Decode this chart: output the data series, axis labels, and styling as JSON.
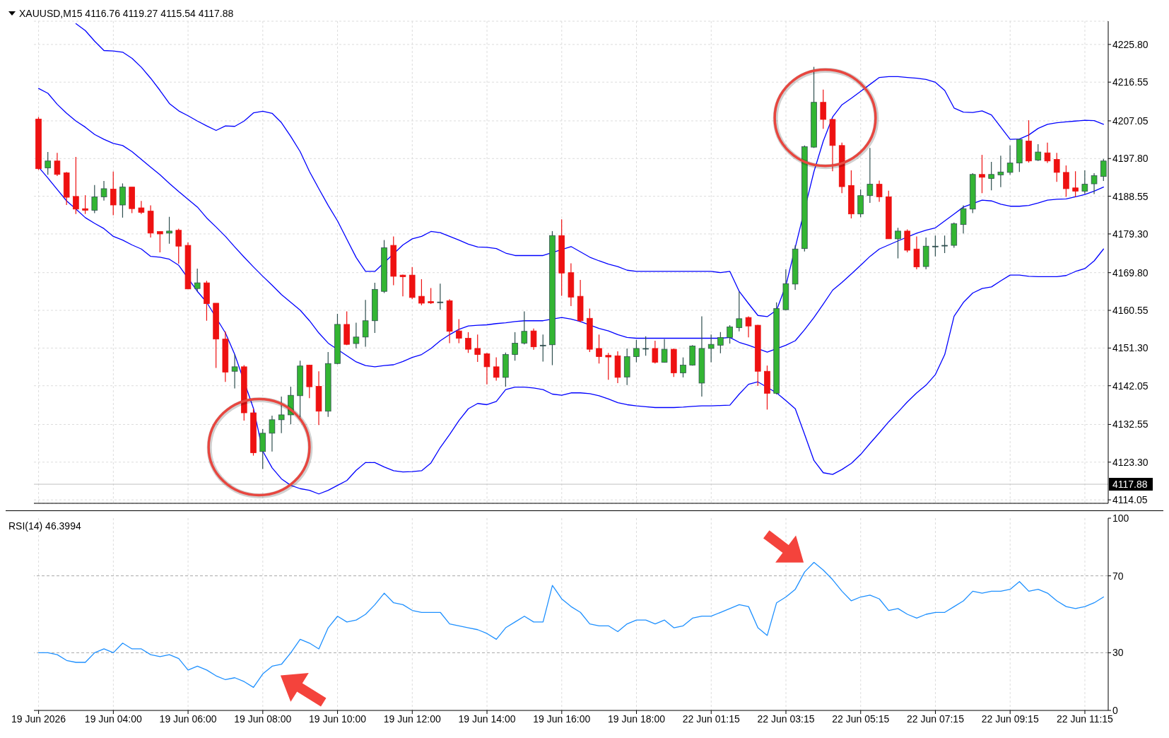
{
  "chart_data": [
    {
      "type": "candlestick",
      "title": "XAUUSD,M15 4116.76 4119.27 4115.54 4117.88",
      "categories": [
        null,
        null,
        null,
        null,
        null,
        null,
        null,
        null,
        null,
        null,
        null,
        null,
        null,
        null,
        null,
        null,
        null,
        null,
        null,
        null,
        null,
        null,
        null,
        null,
        null,
        null,
        null,
        null,
        null,
        null,
        null,
        null,
        null,
        null,
        null,
        null,
        null,
        null,
        null,
        null,
        null,
        null,
        null,
        null,
        null,
        null,
        null,
        null,
        null,
        null,
        null,
        null,
        null,
        null,
        null,
        null,
        null,
        null,
        null,
        null,
        null,
        null,
        null,
        null,
        null,
        null,
        null,
        null,
        null,
        null,
        null,
        null,
        null,
        null,
        null,
        null,
        null,
        null,
        null,
        null,
        null,
        null,
        null,
        null,
        null,
        null,
        null,
        null,
        null,
        null,
        null,
        null,
        null,
        null,
        null,
        null,
        null,
        null,
        null,
        null,
        null,
        null,
        null,
        null,
        null,
        null,
        null,
        null,
        null,
        null,
        null,
        null,
        null,
        null,
        null
      ],
      "ohlc": [
        [
          4207.5,
          4208.0,
          4195.0,
          4195.3
        ],
        [
          4195.5,
          4199.4,
          4193.8,
          4197.2
        ],
        [
          4197.2,
          4199.2,
          4193.5,
          4193.9
        ],
        [
          4194.3,
          4194.5,
          4186.4,
          4188.3
        ],
        [
          4188.5,
          4198.2,
          4184.2,
          4185.4
        ],
        [
          4185.5,
          4188.8,
          4184.2,
          4185.1
        ],
        [
          4185.1,
          4191.3,
          4184.4,
          4188.4
        ],
        [
          4188.4,
          4192.3,
          4187.5,
          4190.4
        ],
        [
          4190.3,
          4194.6,
          4183.9,
          4186.4
        ],
        [
          4186.4,
          4191.7,
          4183.3,
          4190.8
        ],
        [
          4190.8,
          4190.8,
          4184.4,
          4185.5
        ],
        [
          4185.7,
          4187.4,
          4184.2,
          4184.6
        ],
        [
          4184.9,
          4186.3,
          4178.4,
          4179.5
        ],
        [
          4179.9,
          4179.9,
          4174.8,
          4179.3
        ],
        [
          4179.5,
          4183.5,
          4176.9,
          4180.0
        ],
        [
          4180.2,
          4180.6,
          4172.0,
          4176.3
        ],
        [
          4176.5,
          4177.2,
          4165.8,
          4165.8
        ],
        [
          4165.9,
          4170.8,
          4165.2,
          4167.3
        ],
        [
          4167.3,
          4167.8,
          4158.0,
          4162.2
        ],
        [
          4162.3,
          4162.3,
          4146.4,
          4153.5
        ],
        [
          4153.5,
          4155.4,
          4143.0,
          4145.4
        ],
        [
          4145.6,
          4149.7,
          4141.4,
          4146.7
        ],
        [
          4146.7,
          4147.1,
          4133.5,
          4135.4
        ],
        [
          4135.4,
          4136.4,
          4124.9,
          4125.6
        ],
        [
          4125.9,
          4131.4,
          4121.6,
          4130.4
        ],
        [
          4130.4,
          4134.7,
          4125.9,
          4133.7
        ],
        [
          4133.7,
          4139.4,
          4130.4,
          4134.9
        ],
        [
          4134.9,
          4141.8,
          4132.6,
          4139.7
        ],
        [
          4139.6,
          4148.2,
          4133.9,
          4146.9
        ],
        [
          4147.1,
          4147.2,
          4139.0,
          4141.8
        ],
        [
          4141.9,
          4145.6,
          4132.4,
          4135.8
        ],
        [
          4135.8,
          4150.3,
          4134.4,
          4147.5
        ],
        [
          4147.5,
          4159.7,
          4147.3,
          4157.1
        ],
        [
          4157.1,
          4160.3,
          4152.0,
          4152.2
        ],
        [
          4152.4,
          4157.5,
          4151.2,
          4154.0
        ],
        [
          4154.0,
          4163.1,
          4151.6,
          4158.0
        ],
        [
          4158.0,
          4167.3,
          4155.0,
          4165.7
        ],
        [
          4165.2,
          4177.8,
          4164.8,
          4175.9
        ],
        [
          4176.5,
          4178.7,
          4166.7,
          4168.9
        ],
        [
          4169.2,
          4169.3,
          4164.0,
          4168.8
        ],
        [
          4169.2,
          4171.2,
          4163.3,
          4163.7
        ],
        [
          4164.0,
          4168.2,
          4161.8,
          4162.3
        ],
        [
          4162.7,
          4166.0,
          4162.1,
          4162.4
        ],
        [
          4162.6,
          4167.1,
          4160.7,
          4162.6
        ],
        [
          4162.9,
          4163.3,
          4152.5,
          4155.4
        ],
        [
          4155.5,
          4158.4,
          4152.5,
          4153.7
        ],
        [
          4153.7,
          4155.2,
          4150.1,
          4151.0
        ],
        [
          4151.2,
          4154.6,
          4147.9,
          4149.7
        ],
        [
          4149.9,
          4150.1,
          4142.4,
          4146.7
        ],
        [
          4146.7,
          4149.0,
          4143.3,
          4144.1
        ],
        [
          4144.1,
          4150.2,
          4141.8,
          4149.7
        ],
        [
          4149.7,
          4155.2,
          4148.2,
          4152.5
        ],
        [
          4152.5,
          4160.3,
          4152.2,
          4155.4
        ],
        [
          4155.5,
          4156.1,
          4150.9,
          4151.6
        ],
        [
          4152.0,
          4154.6,
          4148.0,
          4152.0
        ],
        [
          4152.1,
          4180.0,
          4147.1,
          4178.9
        ],
        [
          4178.9,
          4182.9,
          4164.1,
          4169.7
        ],
        [
          4169.8,
          4172.1,
          4161.6,
          4163.8
        ],
        [
          4164.0,
          4168.0,
          4157.6,
          4158.0
        ],
        [
          4158.6,
          4161.0,
          4150.3,
          4151.0
        ],
        [
          4151.2,
          4154.6,
          4147.5,
          4149.2
        ],
        [
          4149.5,
          4150.1,
          4143.5,
          4149.1
        ],
        [
          4149.4,
          4150.5,
          4142.7,
          4144.1
        ],
        [
          4144.2,
          4151.2,
          4142.2,
          4149.2
        ],
        [
          4149.2,
          4153.3,
          4147.8,
          4151.2
        ],
        [
          4151.2,
          4154.2,
          4149.4,
          4151.2
        ],
        [
          4151.2,
          4153.1,
          4147.5,
          4147.8
        ],
        [
          4147.8,
          4153.5,
          4147.7,
          4151.0
        ],
        [
          4151.0,
          4151.2,
          4144.2,
          4145.2
        ],
        [
          4145.2,
          4149.0,
          4144.1,
          4147.1
        ],
        [
          4147.1,
          4152.0,
          4147.0,
          4151.8
        ],
        [
          4142.7,
          4159.1,
          4139.4,
          4151.2
        ],
        [
          4151.2,
          4154.6,
          4147.8,
          4152.2
        ],
        [
          4152.0,
          4155.2,
          4150.0,
          4153.9
        ],
        [
          4153.9,
          4156.9,
          4152.4,
          4156.5
        ],
        [
          4156.3,
          4165.2,
          4155.4,
          4158.5
        ],
        [
          4158.8,
          4159.1,
          4153.9,
          4156.7
        ],
        [
          4156.9,
          4157.0,
          4142.0,
          4145.6
        ],
        [
          4145.6,
          4147.0,
          4136.2,
          4140.2
        ],
        [
          4140.2,
          4162.5,
          4139.9,
          4161.0
        ],
        [
          4160.7,
          4170.6,
          4160.6,
          4167.1
        ],
        [
          4167.0,
          4176.5,
          4165.6,
          4175.6
        ],
        [
          4175.7,
          4201.0,
          4175.0,
          4200.7
        ],
        [
          4200.6,
          4220.3,
          4200.4,
          4211.6
        ],
        [
          4211.6,
          4214.7,
          4205.1,
          4207.4
        ],
        [
          4207.4,
          4207.5,
          4194.7,
          4201.0
        ],
        [
          4201.0,
          4201.7,
          4189.3,
          4190.9
        ],
        [
          4191.2,
          4194.9,
          4183.1,
          4184.2
        ],
        [
          4184.2,
          4190.2,
          4183.4,
          4188.7
        ],
        [
          4188.7,
          4200.4,
          4186.9,
          4191.5
        ],
        [
          4191.5,
          4192.4,
          4187.2,
          4188.4
        ],
        [
          4188.4,
          4189.9,
          4178.1,
          4178.1
        ],
        [
          4178.1,
          4180.8,
          4173.3,
          4180.0
        ],
        [
          4180.0,
          4180.4,
          4174.8,
          4175.3
        ],
        [
          4175.6,
          4178.7,
          4170.6,
          4171.2
        ],
        [
          4171.3,
          4178.4,
          4170.6,
          4176.3
        ],
        [
          4176.3,
          4178.9,
          4173.8,
          4176.3
        ],
        [
          4176.5,
          4178.9,
          4174.6,
          4176.5
        ],
        [
          4176.5,
          4182.1,
          4175.9,
          4181.8
        ],
        [
          4181.6,
          4186.3,
          4179.4,
          4185.5
        ],
        [
          4185.4,
          4194.2,
          4184.4,
          4193.9
        ],
        [
          4193.9,
          4198.7,
          4189.3,
          4193.2
        ],
        [
          4192.9,
          4197.0,
          4190.0,
          4193.9
        ],
        [
          4193.8,
          4198.5,
          4190.8,
          4194.5
        ],
        [
          4194.4,
          4201.0,
          4193.8,
          4196.7
        ],
        [
          4196.7,
          4202.6,
          4194.5,
          4202.5
        ],
        [
          4202.1,
          4207.2,
          4196.8,
          4197.2
        ],
        [
          4197.4,
          4201.3,
          4197.2,
          4199.4
        ],
        [
          4199.2,
          4201.7,
          4196.7,
          4197.2
        ],
        [
          4197.6,
          4199.2,
          4192.1,
          4194.4
        ],
        [
          4194.4,
          4196.1,
          4188.4,
          4190.4
        ],
        [
          4190.6,
          4194.7,
          4188.4,
          4189.8
        ],
        [
          4189.8,
          4194.9,
          4189.1,
          4191.5
        ],
        [
          4191.6,
          4194.2,
          4189.1,
          4193.6
        ],
        [
          4193.4,
          4197.7,
          4192.3,
          4197.2
        ]
      ],
      "colors": [
        "#ee1111",
        "#33b533",
        "#ee1111",
        "#ee1111",
        "#ee1111",
        "#ee1111",
        "#33b533",
        "#33b533",
        "#ee1111",
        "#33b533",
        "#ee1111",
        "#ee1111",
        "#ee1111",
        "#ee1111",
        "#33b533",
        "#ee1111",
        "#ee1111",
        "#33b533",
        "#ee1111",
        "#ee1111",
        "#ee1111",
        "#33b533",
        "#ee1111",
        "#ee1111",
        "#33b533",
        "#33b533",
        "#33b533",
        "#33b533",
        "#33b533",
        "#ee1111",
        "#ee1111",
        "#33b533",
        "#33b533",
        "#ee1111",
        "#33b533",
        "#33b533",
        "#33b533",
        "#33b533",
        "#ee1111",
        "#ee1111",
        "#ee1111",
        "#ee1111",
        "#ee1111",
        "#2f4f4f",
        "#ee1111",
        "#ee1111",
        "#ee1111",
        "#ee1111",
        "#ee1111",
        "#ee1111",
        "#33b533",
        "#33b533",
        "#33b533",
        "#ee1111",
        "#2f4f4f",
        "#33b533",
        "#ee1111",
        "#ee1111",
        "#ee1111",
        "#ee1111",
        "#ee1111",
        "#ee1111",
        "#ee1111",
        "#33b533",
        "#33b533",
        "#2f4f4f",
        "#ee1111",
        "#33b533",
        "#ee1111",
        "#33b533",
        "#33b533",
        "#33b533",
        "#33b533",
        "#33b533",
        "#33b533",
        "#33b533",
        "#ee1111",
        "#ee1111",
        "#ee1111",
        "#33b533",
        "#33b533",
        "#33b533",
        "#33b533",
        "#33b533",
        "#ee1111",
        "#ee1111",
        "#ee1111",
        "#ee1111",
        "#33b533",
        "#33b533",
        "#ee1111",
        "#ee1111",
        "#33b533",
        "#ee1111",
        "#ee1111",
        "#33b533",
        "#2f4f4f",
        "#2f4f4f",
        "#33b533",
        "#33b533",
        "#33b533",
        "#ee1111",
        "#33b533",
        "#33b533",
        "#33b533",
        "#33b533",
        "#ee1111",
        "#33b533",
        "#ee1111",
        "#ee1111",
        "#ee1111",
        "#ee1111",
        "#33b533",
        "#33b533",
        "#33b533"
      ],
      "series": [
        {
          "type": "line",
          "color": "#0000ff",
          "values": [
            null,
            null,
            null,
            null,
            4230.9,
            4229.2,
            4226.6,
            4224.3,
            4224.2,
            4223.9,
            4222.4,
            4220.2,
            4217.5,
            4214.5,
            4211.3,
            4209.5,
            4208.3,
            4207.0,
            4205.8,
            4204.7,
            4205.8,
            4205.7,
            4207.0,
            4209.0,
            4209.4,
            4208.9,
            4206.6,
            4203.2,
            4199.5,
            4194.6,
            4190.4,
            4186.3,
            4182.5,
            4178.0,
            4173.5,
            4170.1,
            4170.1,
            null,
            null,
            4176.6,
            4178.1,
            4178.7,
            4179.9,
            4179.6,
            4178.7,
            4177.8,
            4176.8,
            4176.1,
            4176.0,
            4175.7,
            4174.6,
            4174.0,
            4174.0,
            4174.0,
            4174.0,
            null,
            null,
            4176.2,
            4174.9,
            4173.6,
            4172.7,
            4171.9,
            4171.3,
            4170.4,
            4170.1,
            4170.1,
            4170.1,
            4170.1,
            4170.1,
            4170.1,
            4170.1,
            4170.1,
            4170.1,
            4169.8,
            4170.1,
            4165.2,
            4162.2,
            4159.3,
            4159.0,
            4160.6,
            4166.7,
            null,
            null,
            4194.6,
            4202.1,
            4208.0,
            4211.0,
            4212.6,
            4214.3,
            4216.0,
            4217.7,
            4217.9,
            4217.9,
            4217.7,
            4217.5,
            4217.2,
            4216.5,
            4214.5,
            4210.2,
            4209.2,
            4209.1,
            4209.5,
            4208.5,
            4205.5,
            4202.5,
            4202.6,
            4203.6,
            4205.2,
            4206.2,
            4206.6,
            4206.8,
            4207.0,
            4207.2,
            4207.1,
            4206.2
          ]
        },
        {
          "type": "line",
          "color": "#0000ff",
          "values": [
            4215.0,
            4213.8,
            4211.1,
            4208.9,
            4207.0,
            4205.5,
            4203.7,
            4202.5,
            4201.5,
            4201.0,
            4199.5,
            4197.6,
            4195.7,
            4193.8,
            4191.7,
            4189.7,
            4187.8,
            4185.9,
            4183.2,
            4181.0,
            4178.7,
            4176.1,
            4173.6,
            4171.2,
            4168.9,
            4166.7,
            4164.4,
            4162.5,
            4160.6,
            4158.0,
            4155.0,
            4152.5,
            null,
            4149.4,
            4147.9,
            4147.0,
            4146.7,
            4147.0,
            4147.2,
            4148.0,
            4149.0,
            4149.7,
            4151.2,
            4153.1,
            4154.6,
            4155.9,
            4156.7,
            4156.9,
            4157.0,
            4157.3,
            4157.5,
            4157.8,
            4158.0,
            4158.0,
            4158.0,
            null,
            4158.8,
            4158.4,
            4157.8,
            null,
            4156.1,
            4155.5,
            4154.6,
            4153.9,
            4153.7,
            4153.7,
            4153.7,
            4153.7,
            4153.7,
            4153.7,
            4153.7,
            4153.7,
            4153.7,
            4153.7,
            4153.9,
            4152.7,
            4152.0,
            null,
            4150.3,
            null,
            4152.0,
            4153.1,
            4155.8,
            4158.8,
            4162.1,
            4165.5,
            4167.4,
            4169.5,
            4171.6,
            4173.8,
            4175.6,
            4176.6,
            4177.6,
            null,
            4179.5,
            4180.2,
            4180.8,
            4182.5,
            4184.2,
            4185.9,
            null,
            4187.6,
            4187.4,
            4186.6,
            4186.1,
            4186.1,
            4186.3,
            4186.9,
            4187.6,
            4187.8,
            4187.9,
            4188.4,
            4189.0,
            4189.8,
            4190.8
          ]
        },
        {
          "type": "line",
          "color": "#0000ff",
          "values": [
            4195.7,
            4193.0,
            4190.2,
            4187.4,
            4185.4,
            4183.3,
            4181.9,
            4180.6,
            4178.7,
            4177.8,
            4176.6,
            4175.6,
            4173.8,
            4173.6,
            4173.1,
            4171.6,
            null,
            4165.2,
            4162.5,
            null,
            4155.0,
            4149.7,
            null,
            4136.5,
            4126.0,
            4121.9,
            4119.2,
            4117.6,
            4116.8,
            4116.4,
            4115.5,
            4116.4,
            4117.6,
            4118.8,
            4121.3,
            4123.2,
            4123.2,
            4122.1,
            4121.2,
            4120.9,
            4121.0,
            4121.2,
            4123.1,
            4126.9,
            4130.1,
            4133.5,
            4136.4,
            4137.7,
            4137.4,
            4138.2,
            4141.1,
            4141.7,
            4141.7,
            4141.5,
            4141.1,
            4140.0,
            4139.7,
            4140.3,
            4140.3,
            4140.1,
            4139.6,
            4138.8,
            4137.9,
            4137.4,
            4137.1,
            4136.9,
            4136.7,
            4136.7,
            4136.7,
            4136.8,
            4137.0,
            4137.1,
            4137.1,
            4137.2,
            4137.3,
            4140.0,
            4142.4,
            4143.0,
            null,
            4140.3,
            4138.4,
            4136.4,
            4130.1,
            4123.7,
            4120.7,
            4120.3,
            4121.5,
            4123.0,
            4125.2,
            4127.9,
            4130.5,
            4133.2,
            4135.6,
            4138.1,
            4140.3,
            4142.2,
            4144.8,
            4149.7,
            4159.1,
            4162.5,
            4164.8,
            4165.9,
            4166.3,
            4167.8,
            4169.2,
            4169.2,
            4168.9,
            4168.8,
            4168.8,
            4168.8,
            4169.1,
            4170.1,
            4170.8,
            4172.7,
            4175.6
          ]
        }
      ],
      "ylim": [
        4113.2,
        4231.5
      ],
      "yticks": [
        4114.05,
        {
          "value": 4123.3,
          "label": "4123.30"
        },
        4132.55,
        4142.05,
        {
          "value": 4151.3,
          "label": "4151.30"
        },
        4160.55,
        {
          "value": 4169.8,
          "label": "4169.80"
        },
        {
          "value": 4179.3,
          "label": "4179.30"
        },
        4188.55,
        {
          "value": 4197.8,
          "label": "4197.80"
        },
        4207.05,
        4216.55,
        {
          "value": 4225.8,
          "label": "4225.80"
        }
      ],
      "ref_lines": [
        {
          "axis": "y",
          "value": 4117.88,
          "label": "4117.88",
          "color": "#c0c0c0"
        }
      ],
      "grid": true,
      "tick_labels": "y"
    },
    {
      "type": "line",
      "title": "RSI(14) 46.3994",
      "categories": [
        "19 Jun 2026",
        null,
        null,
        null,
        null,
        null,
        null,
        null,
        "19 Jun 04:00",
        null,
        null,
        null,
        null,
        null,
        null,
        null,
        "19 Jun 06:00",
        null,
        null,
        null,
        null,
        null,
        null,
        null,
        "19 Jun 08:00",
        null,
        null,
        null,
        null,
        null,
        null,
        null,
        "19 Jun 10:00",
        null,
        null,
        null,
        null,
        null,
        null,
        null,
        "19 Jun 12:00",
        null,
        null,
        null,
        null,
        null,
        null,
        null,
        "19 Jun 14:00",
        null,
        null,
        null,
        null,
        null,
        null,
        null,
        "19 Jun 16:00",
        null,
        null,
        null,
        null,
        null,
        null,
        null,
        "19 Jun 18:00",
        null,
        null,
        null,
        null,
        null,
        null,
        null,
        "22 Jun 01:15",
        null,
        null,
        null,
        null,
        null,
        null,
        null,
        "22 Jun 03:15",
        null,
        null,
        null,
        null,
        null,
        null,
        null,
        "22 Jun 05:15",
        null,
        null,
        null,
        null,
        null,
        null,
        null,
        "22 Jun 07:15",
        null,
        null,
        null,
        null,
        null,
        null,
        null,
        "22 Jun 09:15",
        null,
        null,
        null,
        null,
        null,
        null,
        null,
        "22 Jun 11:15",
        null,
        null
      ],
      "series": [
        {
          "color": "#1e90ff",
          "values": [
            30,
            30,
            29,
            26,
            25,
            25,
            30,
            32,
            30,
            35,
            32,
            32,
            29,
            28,
            29,
            27,
            21,
            23,
            21,
            18,
            16,
            17,
            15,
            12,
            19,
            23,
            24,
            30,
            37,
            35,
            32,
            43,
            49,
            46,
            47,
            50,
            55,
            61,
            56,
            55,
            52,
            51,
            51,
            51,
            45,
            44,
            43,
            42,
            40,
            37,
            43,
            46,
            49,
            46,
            46,
            65,
            58,
            54,
            51,
            45,
            44,
            44,
            41,
            45,
            47,
            47,
            45,
            47,
            43,
            44,
            48,
            49,
            49,
            51,
            53,
            55,
            54,
            43,
            39,
            56,
            59,
            63,
            72,
            77,
            73,
            68,
            62,
            57,
            59,
            60,
            58,
            52,
            53,
            50,
            48,
            50,
            51,
            51,
            54,
            57,
            62,
            61,
            62,
            62,
            63,
            67,
            62,
            63,
            61,
            57,
            54,
            53,
            54,
            56,
            59
          ]
        }
      ],
      "ylim": [
        0,
        100
      ],
      "yticks": [
        0,
        30,
        70,
        100
      ],
      "ref_lines": [
        {
          "axis": "y",
          "value": 70,
          "color": "#a8a8a8",
          "line_style": "dashed"
        },
        {
          "axis": "y",
          "value": 30,
          "color": "#a8a8a8",
          "line_style": "dashed"
        }
      ],
      "grid": "x"
    }
  ]
}
